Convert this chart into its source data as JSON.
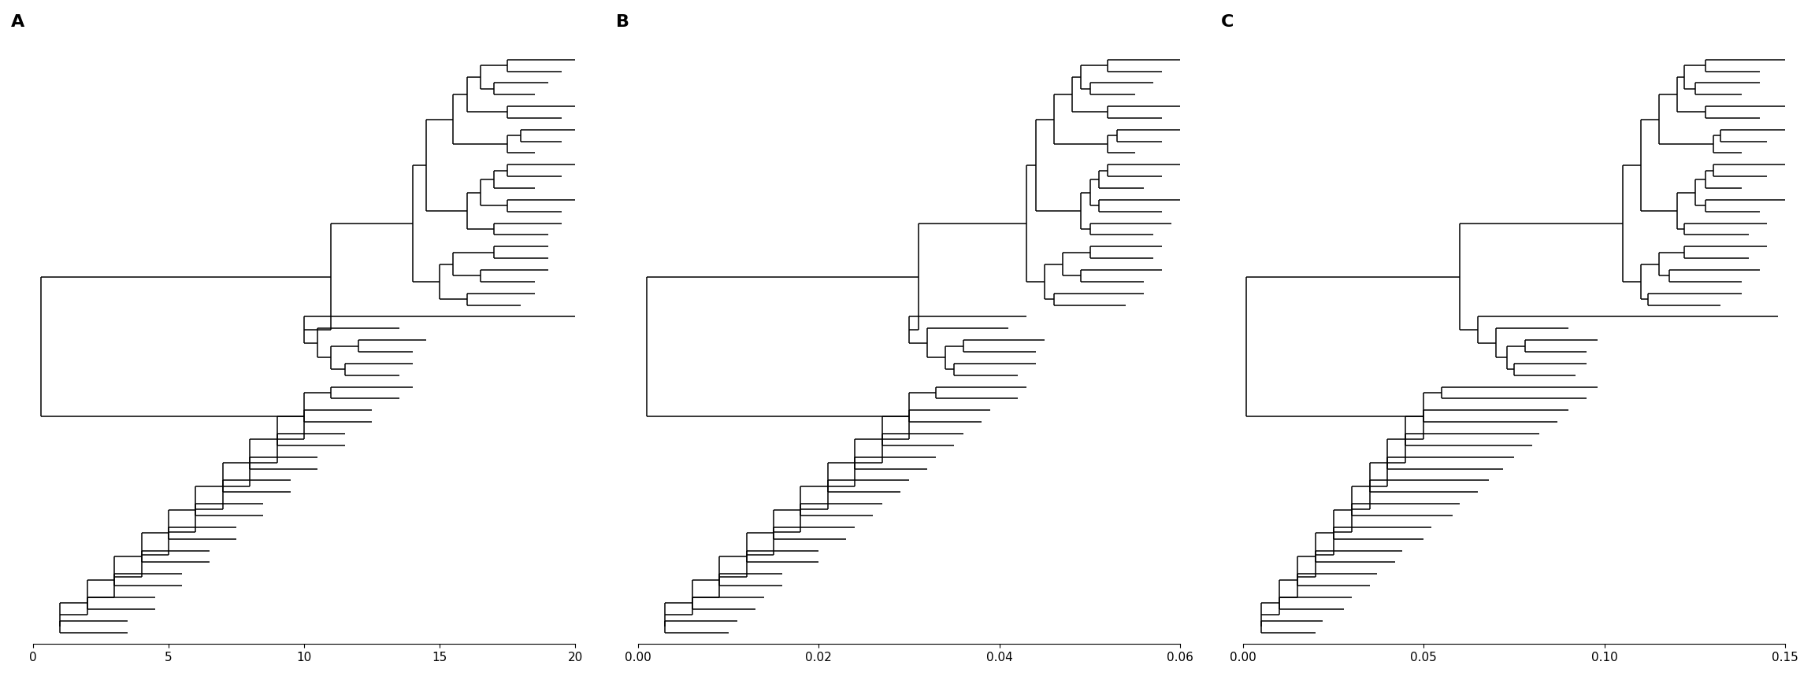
{
  "panels": [
    "A",
    "B",
    "C"
  ],
  "panel_labels": [
    "A",
    "B",
    "C"
  ],
  "xlims_A": [
    0,
    20
  ],
  "xlims_B": [
    0.0,
    0.06
  ],
  "xlims_C": [
    0.0,
    0.15
  ],
  "xticks_A": [
    0,
    5,
    10,
    15,
    20
  ],
  "xticks_B": [
    0.0,
    0.02,
    0.04,
    0.06
  ],
  "xticks_C": [
    0.0,
    0.05,
    0.1,
    0.15
  ],
  "xtick_labels_A": [
    "0",
    "5",
    "10",
    "15",
    "20"
  ],
  "xtick_labels_B": [
    "0.00",
    "0.02",
    "0.04",
    "0.06"
  ],
  "xtick_labels_C": [
    "0.00",
    "0.05",
    "0.10",
    "0.15"
  ],
  "background_color": "#ffffff",
  "line_color": "#000000",
  "label_fontsize": 16,
  "tick_fontsize": 11,
  "line_width": 1.1,
  "n_leaves": 50
}
